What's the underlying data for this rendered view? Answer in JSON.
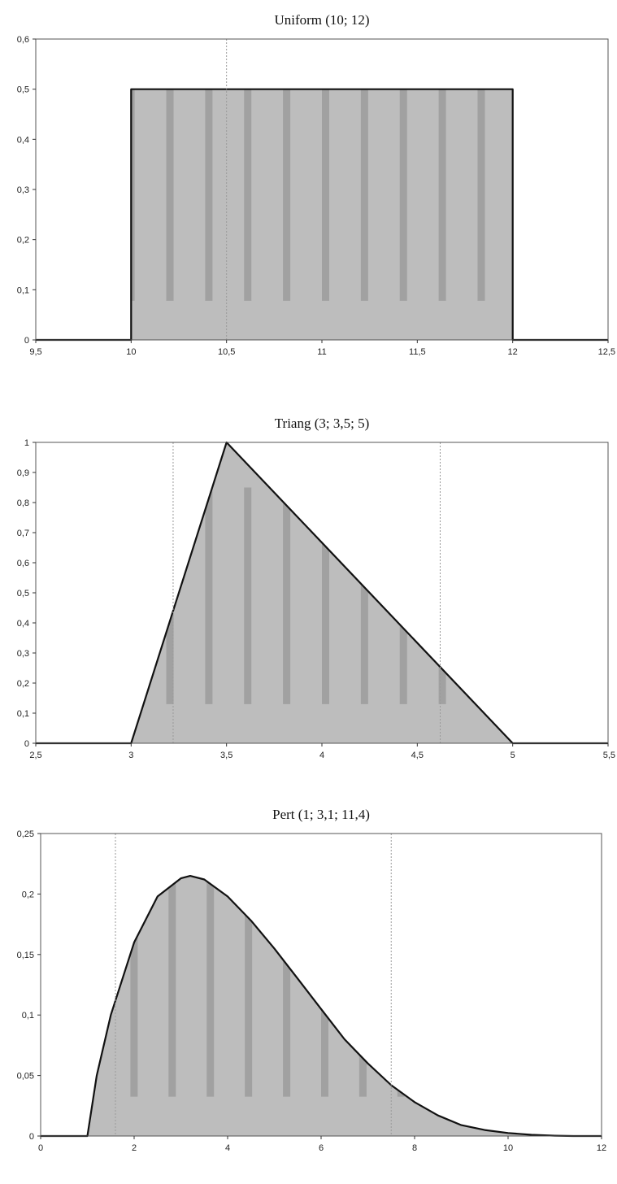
{
  "chart_data": [
    {
      "type": "area",
      "title": "Uniform (10; 12)",
      "xlim": [
        9.5,
        12.5
      ],
      "ylim": [
        0,
        0.6
      ],
      "x_ticks": [
        "9,5",
        "10",
        "10,5",
        "11",
        "11,5",
        "12",
        "12,5"
      ],
      "y_ticks": [
        "0",
        "0,1",
        "0,2",
        "0,3",
        "0,4",
        "0,5",
        "0,6"
      ],
      "series": [
        {
          "x": [
            9.5,
            10,
            10,
            12,
            12,
            12.5
          ],
          "y": [
            0,
            0,
            0.5,
            0.5,
            0,
            0
          ]
        }
      ],
      "grid": false
    },
    {
      "type": "area",
      "title": "Triang (3; 3,5; 5)",
      "xlim": [
        2.5,
        5.5
      ],
      "ylim": [
        0,
        1
      ],
      "x_ticks": [
        "2,5",
        "3",
        "3,5",
        "4",
        "4,5",
        "5",
        "5,5"
      ],
      "y_ticks": [
        "0",
        "0,1",
        "0,2",
        "0,3",
        "0,4",
        "0,5",
        "0,6",
        "0,7",
        "0,8",
        "0,9",
        "1"
      ],
      "series": [
        {
          "x": [
            2.5,
            3,
            3.5,
            5,
            5.5
          ],
          "y": [
            0,
            0,
            1,
            0,
            0
          ]
        }
      ],
      "grid": false
    },
    {
      "type": "area",
      "title": "Pert (1; 3,1; 11,4)",
      "xlim": [
        0,
        12
      ],
      "ylim": [
        0,
        0.25
      ],
      "x_ticks": [
        "0",
        "2",
        "4",
        "6",
        "8",
        "10",
        "12"
      ],
      "y_ticks": [
        "0",
        "0,05",
        "0,1",
        "0,15",
        "0,2",
        "0,25"
      ],
      "series": [
        {
          "x": [
            0,
            1,
            1.2,
            1.5,
            2,
            2.5,
            3,
            3.2,
            3.5,
            4,
            4.5,
            5,
            5.5,
            6,
            6.5,
            7,
            7.5,
            8,
            8.5,
            9,
            9.5,
            10,
            10.5,
            11,
            11.4,
            12
          ],
          "y": [
            0,
            0,
            0.05,
            0.1,
            0.16,
            0.198,
            0.213,
            0.215,
            0.212,
            0.198,
            0.178,
            0.155,
            0.13,
            0.105,
            0.08,
            0.06,
            0.042,
            0.028,
            0.017,
            0.009,
            0.005,
            0.0025,
            0.001,
            0.0003,
            0,
            0
          ]
        }
      ],
      "grid": false
    }
  ]
}
